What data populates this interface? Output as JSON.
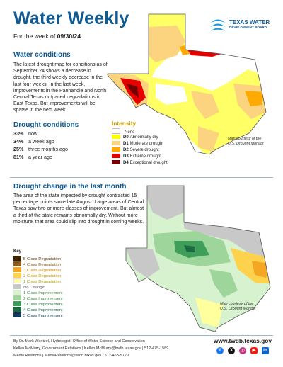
{
  "header": {
    "title": "Water Weekly",
    "week_prefix": "For the week of ",
    "week_date": "09/30/24",
    "logo_line1": "TEXAS WATER",
    "logo_line2": "DEVELOPMENT BOARD"
  },
  "conditions": {
    "heading": "Water conditions",
    "body": "The latest drought map for conditions as of September 24 shows a decrease in drought, the third weekly decrease in the last four weeks. In the last week, improvements in the Panhandle and North Central Texas outpaced degradations in East Texas. But improvements will be sparse in the next week."
  },
  "drought_conditions": {
    "heading": "Drought conditions",
    "rows": [
      {
        "pct": "33%",
        "label": "now"
      },
      {
        "pct": "34%",
        "label": "a week ago"
      },
      {
        "pct": "25%",
        "label": "three months ago"
      },
      {
        "pct": "81%",
        "label": "a year ago"
      }
    ]
  },
  "intensity_legend": {
    "title": "Intensity",
    "items": [
      {
        "code": "",
        "label": "None",
        "color": "#ffffff"
      },
      {
        "code": "D0",
        "label": "Abnormally dry",
        "color": "#ffff00"
      },
      {
        "code": "D1",
        "label": "Moderate drought",
        "color": "#fcd37f"
      },
      {
        "code": "D2",
        "label": "Severe drought",
        "color": "#ffaa00"
      },
      {
        "code": "D3",
        "label": "Extreme drought",
        "color": "#e60000"
      },
      {
        "code": "D4",
        "label": "Exceptional drought",
        "color": "#730000"
      }
    ],
    "credit_line1": "Map courtesy of the",
    "credit_line2": "U.S. Drought Monitor"
  },
  "change": {
    "heading": "Drought change in the last month",
    "body": "The area of the state impacted by drought contracted 15 percentage points since late August. Large areas of Central Texas saw two or more classes of improvement, But almost a third of the state remains abnormally dry. Without more moisture, that area could slip into drought in coming weeks.",
    "key_title": "Key",
    "key": [
      {
        "label": "5 Class Degradation",
        "color": "#3d2200"
      },
      {
        "label": "4 Class Degradation",
        "color": "#8c5a1b"
      },
      {
        "label": "3 Class Degradation",
        "color": "#f5a623"
      },
      {
        "label": "2 Class Degradation",
        "color": "#ffd24d"
      },
      {
        "label": "1 Class Degradation",
        "color": "#ffff9e"
      },
      {
        "label": "No Change",
        "color": "#c8c8c8"
      },
      {
        "label": "1 Class Improvement",
        "color": "#d7f2cf"
      },
      {
        "label": "2 Class Improvement",
        "color": "#9ed59a"
      },
      {
        "label": "3 Class Improvement",
        "color": "#3f9e5a"
      },
      {
        "label": "4 Class Improvement",
        "color": "#1a6b3f"
      },
      {
        "label": "5 Class Improvement",
        "color": "#0d3b5e"
      }
    ],
    "credit_line1": "Map courtesy of the",
    "credit_line2": "U.S. Drought Monitor"
  },
  "footer": {
    "author": "By Dr. Mark Wentzel, Hydrologist, Office of Water Science and Conservation",
    "contact1": "Kellen McMurry, Government Relations  |  Kellen.McMurry@twdb.texas.gov  |  512-475-1589",
    "contact2": "Media Relations  |  MediaRelations@twdb.texas.gov  |  512-463-5129",
    "url": "www.twdb.texas.gov",
    "social": [
      {
        "icon": "facebook-icon",
        "glyph": "f",
        "color": "#1877f2"
      },
      {
        "icon": "x-icon",
        "glyph": "X",
        "color": "#111111"
      },
      {
        "icon": "instagram-icon",
        "glyph": "◎",
        "color": "#c13584"
      },
      {
        "icon": "youtube-icon",
        "glyph": "▶",
        "color": "#e62117"
      },
      {
        "icon": "linkedin-icon",
        "glyph": "in",
        "color": "#0a66c2"
      }
    ]
  }
}
